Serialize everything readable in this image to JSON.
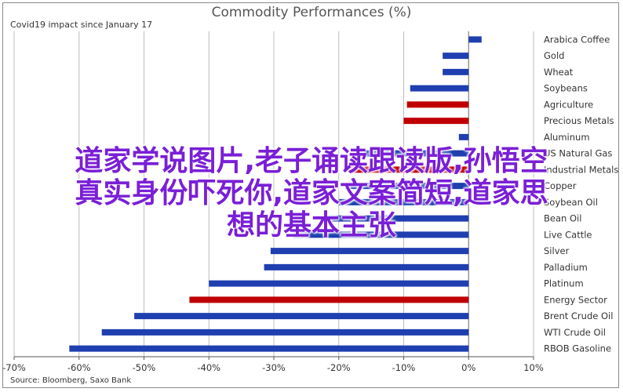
{
  "chart_data": {
    "type": "bar",
    "orientation": "horizontal",
    "title": "Commodity Performances (%)",
    "subtitle": "Covid19 impact since January 17",
    "source": "Source: Bloomberg, Saxo Bank",
    "xlim": [
      -70,
      10
    ],
    "xticks": [
      "-70%",
      "-60%",
      "-50%",
      "-40%",
      "-30%",
      "-20%",
      "-10%",
      "0%",
      "10%"
    ],
    "xtick_values": [
      -70,
      -60,
      -50,
      -40,
      -30,
      -20,
      -10,
      0,
      10
    ],
    "grid": true,
    "categories": [
      "Arabica Coffee",
      "Gold",
      "Wheat",
      "Soybeans",
      "Agriculture",
      "Precious Metals",
      "Aluminum",
      "US Natural Gas",
      "Industrial Metals",
      "Copper",
      "Soybean Oil",
      "Bean Oil",
      "Live Cattle",
      "Silver",
      "Palladium",
      "Platinum",
      "Energy Sector",
      "Brent Crude Oil",
      "WTI Crude Oil",
      "RBOB Gasoline"
    ],
    "values": [
      2,
      -4,
      -4,
      -9,
      -9.5,
      -10,
      -1.5,
      -16,
      -18.5,
      -19,
      -20,
      -22,
      -27,
      -30.5,
      -31.5,
      -40,
      -43,
      -51.5,
      -56.5,
      -61.5
    ],
    "colors": [
      "#1f3fb0",
      "#1f3fb0",
      "#1f3fb0",
      "#1f3fb0",
      "#c00000",
      "#c00000",
      "#1f3fb0",
      "#1f3fb0",
      "#c00000",
      "#1f3fb0",
      "#1f3fb0",
      "#1f3fb0",
      "#1f3fb0",
      "#1f3fb0",
      "#1f3fb0",
      "#1f3fb0",
      "#c00000",
      "#1f3fb0",
      "#1f3fb0",
      "#1f3fb0"
    ]
  },
  "overlay": {
    "lines": [
      "道家学说图片,老子诵读跟读版,孙悟空",
      "真实身份吓死你,道家文案简短,道家思",
      "想的基本主张"
    ],
    "color": "#7a1fd6"
  }
}
